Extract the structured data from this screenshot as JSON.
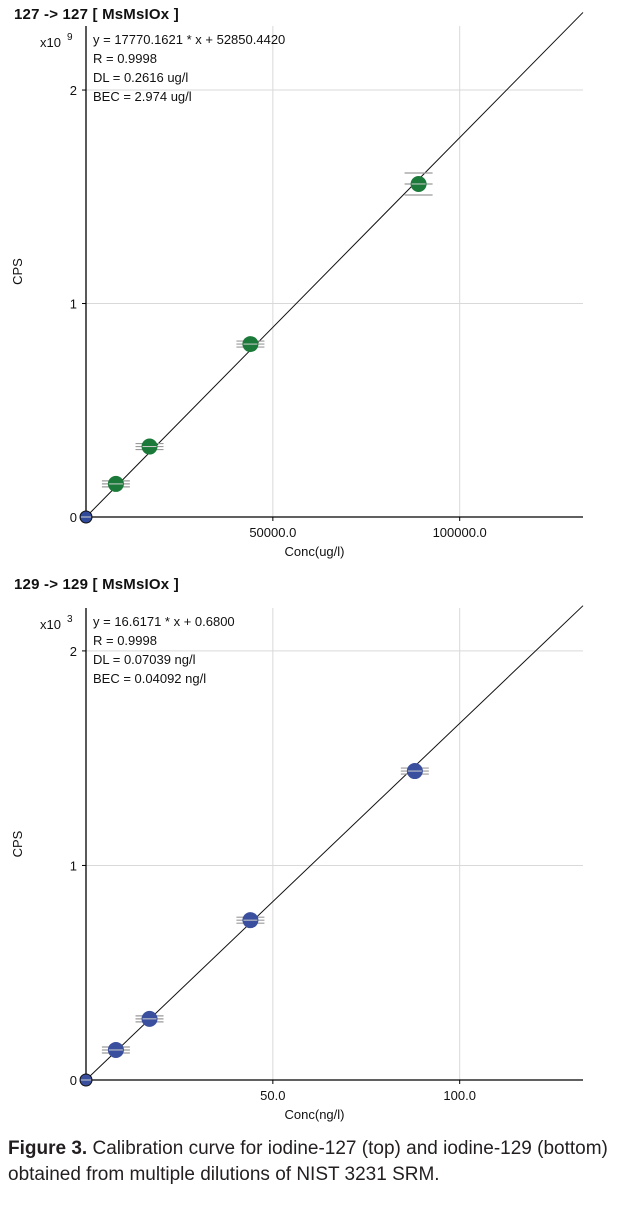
{
  "charts": [
    {
      "title": "127 -> 127  [ MsMsIOx ]",
      "chart_data": {
        "type": "scatter",
        "xlabel": "Conc(ug/l)",
        "ylabel": "CPS",
        "y_multiplier_label": "x10",
        "y_multiplier_exp": "9",
        "xlim": [
          0,
          133000
        ],
        "ylim": [
          0,
          2.3
        ],
        "x_ticks": [
          {
            "value": 50000,
            "label": "50000.0"
          },
          {
            "value": 100000,
            "label": "100000.0"
          }
        ],
        "y_ticks": [
          {
            "value": 0,
            "label": "0"
          },
          {
            "value": 1,
            "label": "1"
          },
          {
            "value": 2,
            "label": "2"
          }
        ],
        "grid": true,
        "equation": [
          "y = 17770.1621 * x  + 52850.4420",
          "R =  0.9998",
          "DL = 0.2616 ug/l",
          "BEC = 2.974 ug/l"
        ],
        "fit": {
          "slope": 1.77701621e-05,
          "intercept": 5.2850442e-05
        },
        "points": [
          {
            "x": 0,
            "y": 0.0
          },
          {
            "x": 8000,
            "y": 0.155
          },
          {
            "x": 17000,
            "y": 0.33
          },
          {
            "x": 44000,
            "y": 0.81
          },
          {
            "x": 89000,
            "y": 1.56
          }
        ],
        "point_color": "#1b7a3a",
        "origin_point_color": "#2f4a9a"
      }
    },
    {
      "title": "129 -> 129  [ MsMsIOx ]",
      "chart_data": {
        "type": "scatter",
        "xlabel": "Conc(ng/l)",
        "ylabel": "CPS",
        "y_multiplier_label": "x10",
        "y_multiplier_exp": "3",
        "xlim": [
          0,
          133
        ],
        "ylim": [
          0,
          2.2
        ],
        "x_ticks": [
          {
            "value": 50,
            "label": "50.0"
          },
          {
            "value": 100,
            "label": "100.0"
          }
        ],
        "y_ticks": [
          {
            "value": 0,
            "label": "0"
          },
          {
            "value": 1,
            "label": "1"
          },
          {
            "value": 2,
            "label": "2"
          }
        ],
        "grid": true,
        "equation": [
          "y = 16.6171 * x  + 0.6800",
          "R =  0.9998",
          "DL = 0.07039 ng/l",
          "BEC = 0.04092 ng/l"
        ],
        "fit": {
          "slope": 0.0166171,
          "intercept": 0.00068
        },
        "points": [
          {
            "x": 0,
            "y": 0.0
          },
          {
            "x": 8,
            "y": 0.14
          },
          {
            "x": 17,
            "y": 0.285
          },
          {
            "x": 44,
            "y": 0.745
          },
          {
            "x": 88,
            "y": 1.44
          }
        ],
        "point_color": "#3a4f9e",
        "origin_point_color": "#3a4f9e"
      }
    }
  ],
  "caption": {
    "label": "Figure 3.",
    "text": " Calibration curve for iodine-127 (top) and iodine-129 (bottom) obtained from multiple dilutions of NIST 3231 SRM."
  }
}
